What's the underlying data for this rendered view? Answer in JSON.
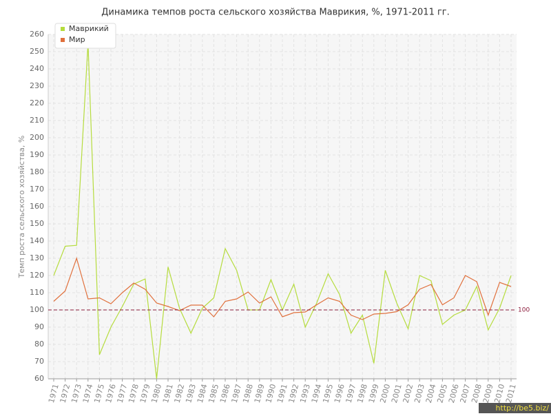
{
  "chart_data": {
    "type": "line",
    "title": "Динамика темпов роста сельского хозяйства Маврикия, %, 1971-2011 гг.",
    "y_label": "Темп роста сельского хозяйства, %",
    "categories": [
      "1971",
      "1972",
      "1973",
      "1974",
      "1975",
      "1976",
      "1977",
      "1978",
      "1979",
      "1980",
      "1981",
      "1982",
      "1983",
      "1984",
      "1985",
      "1986",
      "1987",
      "1988",
      "1989",
      "1990",
      "1991",
      "1992",
      "1993",
      "1994",
      "1995",
      "1996",
      "1997",
      "1998",
      "1999",
      "2000",
      "2001",
      "2002",
      "2003",
      "2004",
      "2005",
      "2006",
      "2007",
      "2008",
      "2009",
      "2010",
      "2011"
    ],
    "series": [
      {
        "name": "Маврикий",
        "color": "#b5dc3c",
        "values": [
          120,
          137,
          137.5,
          255,
          74,
          90,
          102,
          115,
          118,
          60,
          125,
          101,
          86.5,
          101,
          107,
          135.6,
          123,
          100,
          100,
          117.6,
          100,
          115,
          90,
          104,
          121,
          109,
          86.5,
          97,
          69,
          123,
          104,
          89,
          120,
          117,
          91.6,
          97,
          100,
          113.6,
          88.4,
          101,
          120
        ]
      },
      {
        "name": "Мир",
        "color": "#e0703c",
        "values": [
          105,
          111,
          130,
          106.4,
          107,
          103.6,
          110,
          115.6,
          112,
          104,
          102,
          99.6,
          102.8,
          102.8,
          96,
          105,
          106.4,
          110.4,
          104,
          107.6,
          96,
          98.4,
          98.8,
          103,
          107,
          105,
          97,
          94.4,
          97.6,
          98,
          99,
          103,
          112,
          114.8,
          103,
          107,
          120,
          116.4,
          97,
          116,
          113.6
        ]
      }
    ],
    "ylim": [
      60,
      260
    ],
    "yticks": [
      60,
      70,
      80,
      90,
      100,
      110,
      120,
      130,
      140,
      150,
      160,
      170,
      180,
      190,
      200,
      210,
      220,
      230,
      240,
      250,
      260
    ],
    "reference_line": 100,
    "grid": true,
    "legend": "top-left",
    "watermark": "http://be5.biz/"
  }
}
